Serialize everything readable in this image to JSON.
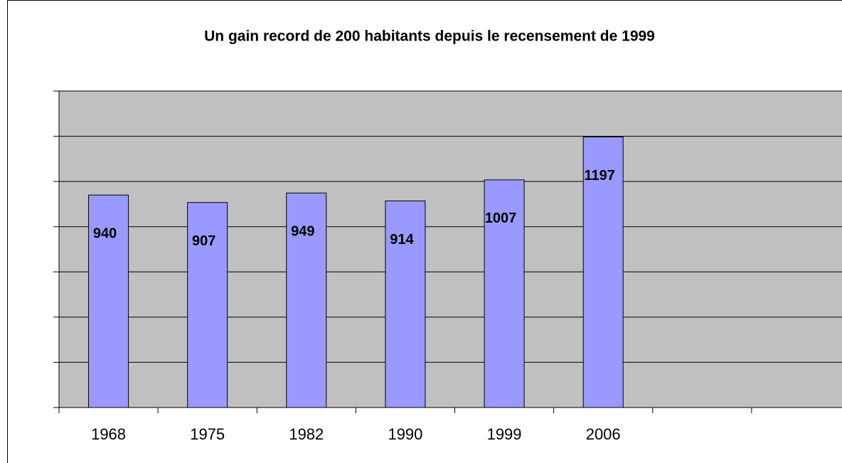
{
  "chart_data": {
    "type": "bar",
    "title": "Un gain record de 200 habitants depuis le recensement de 1999",
    "categories": [
      "1968",
      "1975",
      "1982",
      "1990",
      "1999",
      "2006",
      null,
      null
    ],
    "values": [
      940,
      907,
      949,
      914,
      1007,
      1197,
      null,
      null
    ],
    "color": "#9999ff",
    "ylim": [
      0,
      1400
    ],
    "yticks": [
      0,
      200,
      400,
      600,
      800,
      1000,
      1200,
      1400
    ],
    "grid": true
  }
}
